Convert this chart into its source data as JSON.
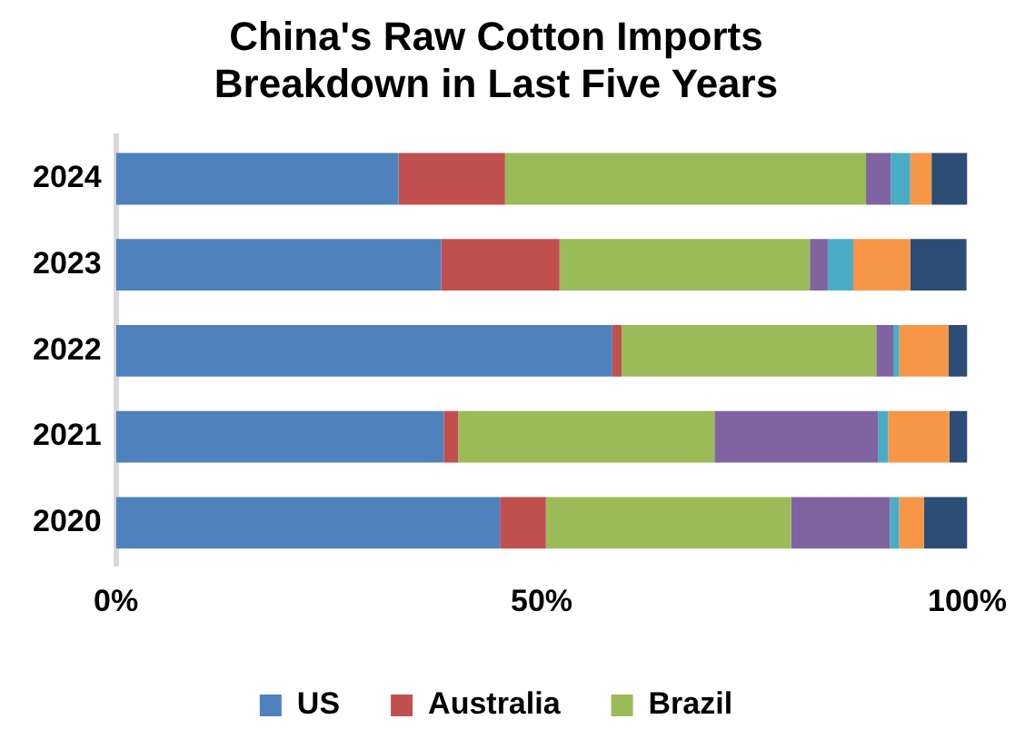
{
  "chart_data": {
    "type": "bar",
    "orientation": "horizontal",
    "stacked": true,
    "title": "China's Raw Cotton Imports\nBreakdown in Last Five Years",
    "categories": [
      "2024",
      "2023",
      "2022",
      "2021",
      "2020"
    ],
    "series": [
      {
        "name": "US",
        "color": "#4f81bd",
        "values": [
          33.2,
          38.2,
          58.3,
          38.5,
          45.1
        ]
      },
      {
        "name": "Australia",
        "color": "#c0504d",
        "values": [
          12.5,
          13.9,
          1.1,
          1.7,
          5.4
        ]
      },
      {
        "name": "Brazil",
        "color": "#9bbb59",
        "values": [
          42.4,
          29.4,
          29.9,
          30.1,
          28.8
        ]
      },
      {
        "color": "#8064a2",
        "values": [
          2.9,
          2.1,
          2.0,
          19.2,
          11.6
        ]
      },
      {
        "color": "#4bacc6",
        "values": [
          2.3,
          3.0,
          0.7,
          1.2,
          1.1
        ]
      },
      {
        "color": "#f79646",
        "values": [
          2.5,
          6.7,
          5.8,
          7.2,
          2.9
        ]
      },
      {
        "color": "#2c4d75",
        "values": [
          4.2,
          6.6,
          2.2,
          2.1,
          5.1
        ]
      }
    ],
    "xlim": [
      0,
      100
    ],
    "xticks": [
      {
        "value": 0,
        "label": "0%"
      },
      {
        "value": 50,
        "label": "50%"
      },
      {
        "value": 100,
        "label": "100%"
      }
    ],
    "grid": false,
    "legend": "bottom"
  }
}
